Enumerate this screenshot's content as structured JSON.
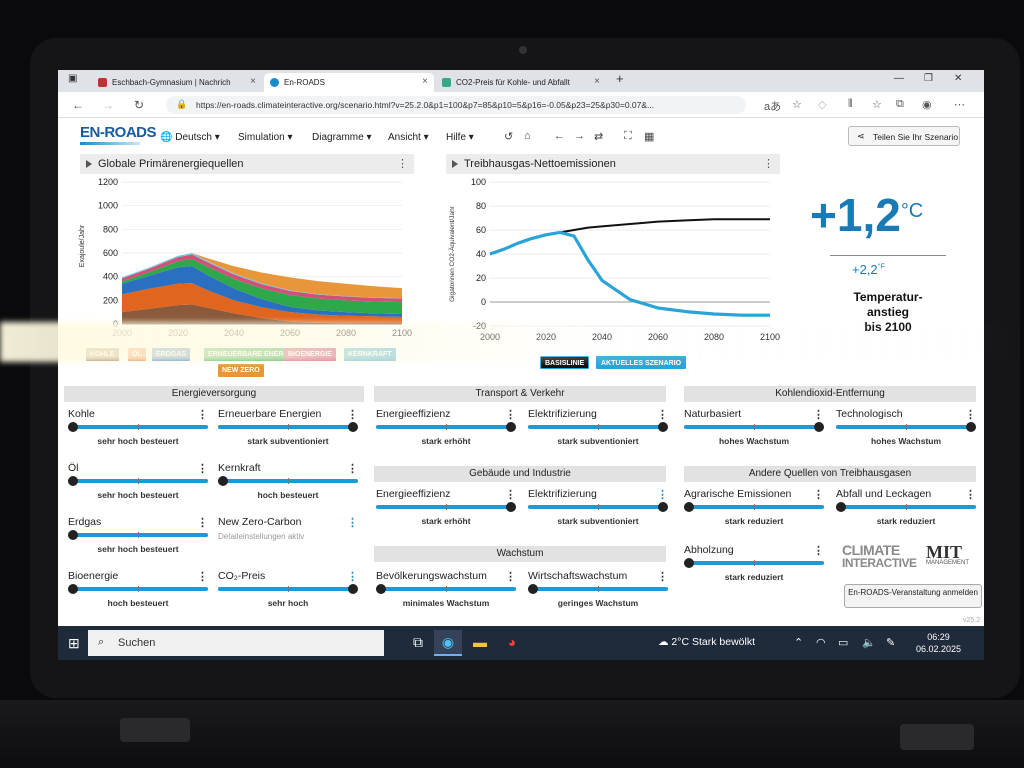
{
  "browser": {
    "tabs": [
      {
        "label": "Eschbach-Gymnasium | Nachrich",
        "color": "#b33"
      },
      {
        "label": "En-ROADS",
        "color": "#1a8acb"
      },
      {
        "label": "CO2-Preis für Kohle- und Abfallt",
        "color": "#3a8"
      }
    ],
    "new_tab": "+",
    "url": "https://en-roads.climateinteractive.org/scenario.html?v=25.2.0&p1=100&p7=85&p10=5&p16=-0.05&p23=25&p30=0.07&..."
  },
  "app": {
    "logo": "EN-ROADS",
    "menus": [
      "Deutsch",
      "Simulation",
      "Diagramme",
      "Ansicht",
      "Hilfe"
    ],
    "share_label": "Teilen Sie Ihr Szenario"
  },
  "graph1": {
    "title": "Globale Primärenergiequellen",
    "ylabel": "Exajoule/Jahr",
    "legend": [
      {
        "label": "KOHLE",
        "color": "#8a5a3a"
      },
      {
        "label": "ÖL",
        "color": "#e0651e"
      },
      {
        "label": "ERDGAS",
        "color": "#2a6fc0"
      },
      {
        "label": "ERNEUERBARE ENERGIEN",
        "color": "#2ea84a"
      },
      {
        "label": "BIOENERGIE",
        "color": "#d0507a"
      },
      {
        "label": "KERNKRAFT",
        "color": "#7ac4d8"
      },
      {
        "label": "NEW ZERO",
        "color": "#e8963a"
      }
    ]
  },
  "graph2": {
    "title": "Treibhausgas-Nettoemissionen",
    "ylabel": "Gigatonnen CO2-Äquivalent/Jahr",
    "legend": [
      {
        "label": "BASISLINIE",
        "color": "#111111"
      },
      {
        "label": "AKTUELLES SZENARIO",
        "color": "#2aa4d8"
      }
    ]
  },
  "chart_data": [
    {
      "type": "area",
      "title": "Globale Primärenergiequellen",
      "ylabel": "Exajoule/Jahr",
      "x": [
        2000,
        2010,
        2020,
        2025,
        2030,
        2040,
        2050,
        2060,
        2070,
        2080,
        2090,
        2100
      ],
      "ylim": [
        0,
        1200
      ],
      "xlim": [
        2000,
        2100
      ],
      "series": [
        {
          "name": "KOHLE",
          "values": [
            100,
            130,
            160,
            165,
            140,
            90,
            50,
            20,
            10,
            5,
            5,
            5
          ]
        },
        {
          "name": "ÖL",
          "values": [
            150,
            170,
            180,
            180,
            150,
            110,
            90,
            80,
            70,
            65,
            60,
            55
          ]
        },
        {
          "name": "ERDGAS",
          "values": [
            90,
            110,
            140,
            145,
            130,
            100,
            70,
            45,
            35,
            30,
            25,
            25
          ]
        },
        {
          "name": "ERNEUERBARE ENERGIEN",
          "values": [
            20,
            30,
            50,
            60,
            70,
            80,
            90,
            100,
            100,
            100,
            100,
            100
          ]
        },
        {
          "name": "BIOENERGIE",
          "values": [
            25,
            30,
            35,
            37,
            38,
            38,
            36,
            34,
            33,
            32,
            31,
            30
          ]
        },
        {
          "name": "KERNKRAFT",
          "values": [
            10,
            10,
            12,
            12,
            12,
            10,
            8,
            5,
            4,
            3,
            3,
            3
          ]
        },
        {
          "name": "NEW ZERO",
          "values": [
            0,
            0,
            0,
            0,
            20,
            60,
            90,
            110,
            110,
            105,
            95,
            85
          ]
        }
      ]
    },
    {
      "type": "line",
      "title": "Treibhausgas-Nettoemissionen",
      "ylabel": "Gigatonnen CO2-Äquivalent/Jahr",
      "x": [
        2000,
        2005,
        2010,
        2015,
        2020,
        2025,
        2030,
        2035,
        2040,
        2050,
        2060,
        2070,
        2080,
        2090,
        2100
      ],
      "ylim": [
        -20,
        100
      ],
      "xlim": [
        2000,
        2100
      ],
      "series": [
        {
          "name": "BASISLINIE",
          "values": [
            40,
            44,
            49,
            53,
            56,
            58,
            60,
            62,
            63,
            65,
            67,
            68,
            69,
            69,
            69
          ]
        },
        {
          "name": "AKTUELLES SZENARIO",
          "values": [
            40,
            44,
            49,
            53,
            56,
            58,
            55,
            35,
            18,
            2,
            -5,
            -8,
            -10,
            -11,
            -11
          ]
        }
      ]
    }
  ],
  "temperature": {
    "celsius": "+1,2",
    "celsius_unit": "°C",
    "fahrenheit": "+2,2",
    "fahrenheit_unit": "°F",
    "label1": "Temperatur-",
    "label2": "anstieg",
    "label3": "bis 2100"
  },
  "sections": {
    "energy": "Energieversorgung",
    "transport": "Transport & Verkehr",
    "co2removal": "Kohlendioxid-Entfernung",
    "buildings": "Gebäude und Industrie",
    "other_gases": "Andere Quellen von Treibhausgasen",
    "growth": "Wachstum"
  },
  "controls": {
    "kohle": {
      "name": "Kohle",
      "status": "sehr hoch besteuert",
      "level": 0.0
    },
    "erneuerbare": {
      "name": "Erneuerbare Energien",
      "status": "stark subventioniert",
      "level": 1.0
    },
    "oel": {
      "name": "Öl",
      "status": "sehr hoch besteuert",
      "level": 0.0
    },
    "kernkraft": {
      "name": "Kernkraft",
      "status": "hoch besteuert",
      "level": 0.0
    },
    "erdgas": {
      "name": "Erdgas",
      "status": "sehr hoch besteuert",
      "level": 0.0
    },
    "newzero": {
      "name": "New Zero-Carbon",
      "status": "Detaileinstellungen aktiv"
    },
    "bioenergie": {
      "name": "Bioenergie",
      "status": "hoch besteuert",
      "level": 0.0
    },
    "co2preis": {
      "name": "CO₂-Preis",
      "status": "sehr hoch",
      "level": 1.0
    },
    "t_effizienz": {
      "name": "Energieeffizienz",
      "status": "stark erhöht",
      "level": 1.0
    },
    "t_elektro": {
      "name": "Elektrifizierung",
      "status": "stark subventioniert",
      "level": 1.0
    },
    "naturbasiert": {
      "name": "Naturbasiert",
      "status": "hohes Wachstum",
      "level": 1.0
    },
    "technologisch": {
      "name": "Technologisch",
      "status": "hohes Wachstum",
      "level": 1.0
    },
    "g_effizienz": {
      "name": "Energieeffizienz",
      "status": "stark erhöht",
      "level": 1.0
    },
    "g_elektro": {
      "name": "Elektrifizierung",
      "status": "stark subventioniert",
      "level": 1.0
    },
    "agrar": {
      "name": "Agrarische Emissionen",
      "status": "stark reduziert",
      "level": 0.0
    },
    "abfall": {
      "name": "Abfall und Leckagen",
      "status": "stark reduziert",
      "level": 0.0
    },
    "abholzung": {
      "name": "Abholzung",
      "status": "stark reduziert",
      "level": 0.0
    },
    "bevoelkerung": {
      "name": "Bevölkerungswachstum",
      "status": "minimales Wachstum",
      "level": 0.0
    },
    "wirtschaft": {
      "name": "Wirtschaftswachstum",
      "status": "geringes Wachstum",
      "level": 0.0
    }
  },
  "branding": {
    "ci_line1": "CLIMATE",
    "ci_line2": "INTERACTIVE",
    "mit": "MIT",
    "mit_sub": "MANAGEMENT",
    "event_button": "En-ROADS-Veranstaltung anmelden",
    "version": "v25.2"
  },
  "taskbar": {
    "search": "Suchen",
    "weather": "2°C  Stark bewölkt",
    "time": "06:29",
    "date": "06.02.2025"
  }
}
